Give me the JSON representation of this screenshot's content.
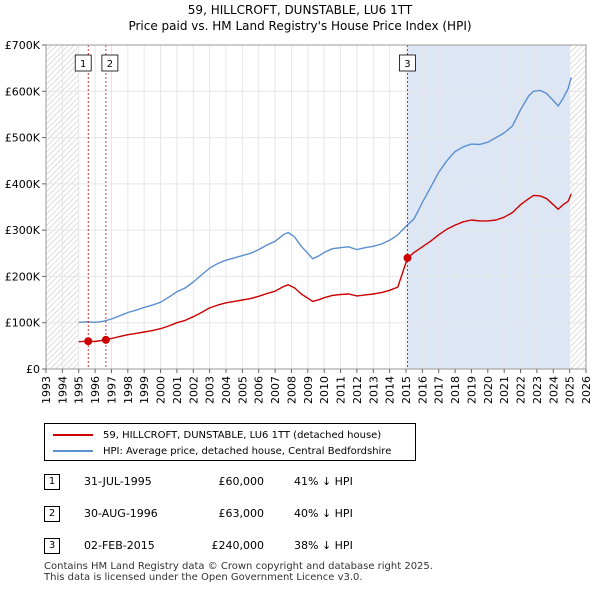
{
  "header": {
    "title_line1": "59, HILLCROFT, DUNSTABLE, LU6 1TT",
    "title_line2": "Price paid vs. HM Land Registry's House Price Index (HPI)"
  },
  "colors": {
    "property": "#cc0000",
    "hpi": "#5b8fd0",
    "shade": "#dde6f5",
    "marker_line": "#cc0000"
  },
  "chart_data": {
    "type": "line",
    "xlim": [
      1993,
      2026
    ],
    "ylim": [
      0,
      700000
    ],
    "x_ticks": [
      1993,
      1994,
      1995,
      1996,
      1997,
      1998,
      1999,
      2000,
      2001,
      2002,
      2003,
      2004,
      2005,
      2006,
      2007,
      2008,
      2009,
      2010,
      2011,
      2012,
      2013,
      2014,
      2015,
      2016,
      2017,
      2018,
      2019,
      2020,
      2021,
      2022,
      2023,
      2024,
      2025,
      2026
    ],
    "y_ticks": [
      {
        "value": 0,
        "label": "£0"
      },
      {
        "value": 100000,
        "label": "£100K"
      },
      {
        "value": 200000,
        "label": "£200K"
      },
      {
        "value": 300000,
        "label": "£300K"
      },
      {
        "value": 400000,
        "label": "£400K"
      },
      {
        "value": 500000,
        "label": "£500K"
      },
      {
        "value": 600000,
        "label": "£600K"
      },
      {
        "value": 700000,
        "label": "£700K"
      }
    ],
    "hatch_before": 1995.0,
    "hatch_after": 2025.0,
    "shaded_from": 2015.08,
    "series": [
      {
        "name": "hpi",
        "label": "HPI: Average price, detached house, Central Bedfordshire",
        "x": [
          1995.0,
          1995.5,
          1996.0,
          1996.5,
          1997.0,
          1997.5,
          1998.0,
          1998.5,
          1999.0,
          1999.5,
          2000.0,
          2000.5,
          2001.0,
          2001.5,
          2002.0,
          2002.5,
          2003.0,
          2003.5,
          2004.0,
          2004.5,
          2005.0,
          2005.5,
          2006.0,
          2006.5,
          2007.0,
          2007.5,
          2007.8,
          2008.2,
          2008.6,
          2009.0,
          2009.3,
          2009.7,
          2010.0,
          2010.5,
          2011.0,
          2011.5,
          2012.0,
          2012.5,
          2013.0,
          2013.5,
          2014.0,
          2014.5,
          2015.0,
          2015.5,
          2016.0,
          2016.5,
          2017.0,
          2017.5,
          2018.0,
          2018.5,
          2019.0,
          2019.5,
          2020.0,
          2020.5,
          2021.0,
          2021.5,
          2022.0,
          2022.5,
          2022.8,
          2023.2,
          2023.6,
          2024.0,
          2024.3,
          2024.6,
          2024.9,
          2025.1
        ],
        "values": [
          101000,
          102000,
          101000,
          103000,
          108000,
          115000,
          122000,
          127000,
          133000,
          138000,
          144000,
          155000,
          167000,
          175000,
          188000,
          203000,
          218000,
          228000,
          235000,
          240000,
          245000,
          250000,
          258000,
          268000,
          276000,
          290000,
          295000,
          285000,
          265000,
          250000,
          238000,
          245000,
          252000,
          260000,
          262000,
          264000,
          258000,
          262000,
          265000,
          270000,
          278000,
          290000,
          308000,
          325000,
          360000,
          392000,
          425000,
          450000,
          470000,
          480000,
          486000,
          485000,
          490000,
          500000,
          510000,
          525000,
          560000,
          590000,
          600000,
          602000,
          595000,
          580000,
          568000,
          585000,
          605000,
          630000
        ]
      },
      {
        "name": "property",
        "label": "59, HILLCROFT, DUNSTABLE, LU6 1TT (detached house)",
        "x": [
          1995.0,
          1995.58,
          1996.0,
          1996.66,
          1997.0,
          1997.5,
          1998.0,
          1998.5,
          1999.0,
          1999.5,
          2000.0,
          2000.5,
          2001.0,
          2001.5,
          2002.0,
          2002.5,
          2003.0,
          2003.5,
          2004.0,
          2004.5,
          2005.0,
          2005.5,
          2006.0,
          2006.5,
          2007.0,
          2007.5,
          2007.8,
          2008.2,
          2008.6,
          2009.0,
          2009.3,
          2009.7,
          2010.0,
          2010.5,
          2011.0,
          2011.5,
          2012.0,
          2012.5,
          2013.0,
          2013.5,
          2014.0,
          2014.5,
          2015.09,
          2015.5,
          2016.0,
          2016.5,
          2017.0,
          2017.5,
          2018.0,
          2018.5,
          2019.0,
          2019.5,
          2020.0,
          2020.5,
          2021.0,
          2021.5,
          2022.0,
          2022.5,
          2022.8,
          2023.2,
          2023.6,
          2024.0,
          2024.3,
          2024.6,
          2024.9,
          2025.1
        ],
        "values": [
          59000,
          60000,
          59500,
          63000,
          66000,
          70000,
          74000,
          77000,
          80000,
          83000,
          87000,
          93000,
          100000,
          105000,
          113000,
          122000,
          132000,
          138000,
          143000,
          146000,
          149000,
          152000,
          157000,
          163000,
          168000,
          178000,
          182000,
          175000,
          162000,
          153000,
          146000,
          150000,
          154000,
          159000,
          161000,
          162000,
          158000,
          160000,
          162000,
          165000,
          170000,
          177000,
          240000,
          252000,
          264000,
          276000,
          290000,
          302000,
          311000,
          318000,
          322000,
          320000,
          320000,
          322000,
          328000,
          338000,
          355000,
          368000,
          375000,
          374000,
          368000,
          355000,
          345000,
          355000,
          362000,
          378000
        ]
      }
    ],
    "sales": [
      {
        "id": "1",
        "x": 1995.58,
        "value": 60000
      },
      {
        "id": "2",
        "x": 1996.66,
        "value": 63000
      },
      {
        "id": "3",
        "x": 2015.09,
        "value": 240000
      }
    ]
  },
  "legend": {
    "property_label": "59, HILLCROFT, DUNSTABLE, LU6 1TT (detached house)",
    "hpi_label": "HPI: Average price, detached house, Central Bedfordshire"
  },
  "transactions": [
    {
      "num": "1",
      "date": "31-JUL-1995",
      "price": "£60,000",
      "hpi": "41% ↓ HPI"
    },
    {
      "num": "2",
      "date": "30-AUG-1996",
      "price": "£63,000",
      "hpi": "40% ↓ HPI"
    },
    {
      "num": "3",
      "date": "02-FEB-2015",
      "price": "£240,000",
      "hpi": "38% ↓ HPI"
    }
  ],
  "footer": {
    "line1": "Contains HM Land Registry data © Crown copyright and database right 2025.",
    "line2": "This data is licensed under the Open Government Licence v3.0."
  }
}
